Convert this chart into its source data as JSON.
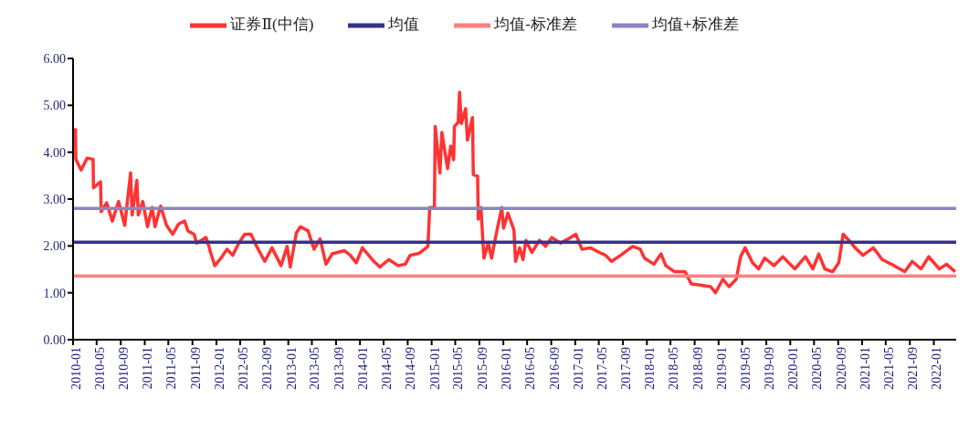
{
  "chart_data": {
    "type": "line",
    "legend": "top",
    "marker": "none",
    "line_style": "solid",
    "xlim": [
      "2010-01-01",
      "2022-04-25"
    ],
    "xticks": [
      "2010-01",
      "2010-05",
      "2010-09",
      "2011-01",
      "2011-05",
      "2011-09",
      "2012-01",
      "2012-05",
      "2012-09",
      "2013-01",
      "2013-05",
      "2013-09",
      "2014-01",
      "2014-05",
      "2014-09",
      "2015-01",
      "2015-05",
      "2015-09",
      "2016-01",
      "2016-05",
      "2016-09",
      "2017-01",
      "2017-05",
      "2017-09",
      "2018-01",
      "2018-05",
      "2018-09",
      "2019-01",
      "2019-05",
      "2019-09",
      "2020-01",
      "2020-05",
      "2020-09",
      "2021-01",
      "2021-05",
      "2021-09",
      "2022-01"
    ],
    "ylim": [
      0,
      6
    ],
    "yticks": [
      {
        "value": 0,
        "label": "0.00"
      },
      {
        "value": 1,
        "label": "1.00"
      },
      {
        "value": 2,
        "label": "2.00"
      },
      {
        "value": 3,
        "label": "3.00"
      },
      {
        "value": 4,
        "label": "4.00"
      },
      {
        "value": 5,
        "label": "5.00"
      },
      {
        "value": 6,
        "label": "6.00"
      }
    ],
    "series": [
      {
        "name": "证券Ⅱ(中信)",
        "color": "#ff3333",
        "x": [
          "2010-01-13",
          "2010-01-15",
          "2010-02-11",
          "2010-03-13",
          "2010-04-13",
          "2010-04-15",
          "2010-05-21",
          "2010-05-24",
          "2010-06-21",
          "2010-07-20",
          "2010-08-21",
          "2010-09-21",
          "2010-10-21",
          "2010-10-29",
          "2010-11-22",
          "2010-11-29",
          "2010-12-22",
          "2011-01-15",
          "2011-02-08",
          "2011-02-22",
          "2011-03-23",
          "2011-04-22",
          "2011-05-23",
          "2011-06-23",
          "2011-07-23",
          "2011-08-09",
          "2011-09-09",
          "2011-09-23",
          "2011-11-09",
          "2011-11-24",
          "2011-12-02",
          "2011-12-24",
          "2012-01-24",
          "2012-02-24",
          "2012-03-24",
          "2012-04-24",
          "2012-05-24",
          "2012-06-25",
          "2012-07-24",
          "2012-09-03",
          "2012-10-10",
          "2012-11-25",
          "2012-12-26",
          "2013-01-11",
          "2013-02-11",
          "2013-03-04",
          "2013-04-12",
          "2013-05-12",
          "2013-06-12",
          "2013-07-12",
          "2013-08-12",
          "2013-10-13",
          "2013-11-13",
          "2013-12-13",
          "2014-01-13",
          "2014-03-13",
          "2014-04-13",
          "2014-05-28",
          "2014-07-14",
          "2014-08-20",
          "2014-09-13",
          "2014-10-28",
          "2014-12-13",
          "2014-12-22",
          "2015-01-15",
          "2015-01-19",
          "2015-02-12",
          "2015-02-22",
          "2015-03-23",
          "2015-04-08",
          "2015-04-23",
          "2015-04-27",
          "2015-05-16",
          "2015-05-23",
          "2015-06-01",
          "2015-06-23",
          "2015-07-02",
          "2015-07-28",
          "2015-08-01",
          "2015-08-23",
          "2015-08-26",
          "2015-09-09",
          "2015-09-24",
          "2015-10-16",
          "2015-11-02",
          "2015-11-24",
          "2015-12-24",
          "2016-01-02",
          "2016-01-24",
          "2016-02-24",
          "2016-03-03",
          "2016-03-24",
          "2016-04-10",
          "2016-04-25",
          "2016-05-25",
          "2016-07-03",
          "2016-08-03",
          "2016-09-04",
          "2016-10-18",
          "2016-11-26",
          "2017-01-04",
          "2017-02-04",
          "2017-03-19",
          "2017-05-05",
          "2017-06-05",
          "2017-07-05",
          "2017-08-20",
          "2017-10-20",
          "2017-11-28",
          "2017-12-20",
          "2018-02-06",
          "2018-03-14",
          "2018-04-07",
          "2018-05-22",
          "2018-07-14",
          "2018-08-15",
          "2018-10-08",
          "2018-11-22",
          "2018-12-16",
          "2019-01-23",
          "2019-02-23",
          "2019-04-01",
          "2019-04-23",
          "2019-05-16",
          "2019-06-23",
          "2019-07-24",
          "2019-08-24",
          "2019-10-10",
          "2019-11-24",
          "2020-01-24",
          "2020-03-18",
          "2020-04-25",
          "2020-05-25",
          "2020-06-25",
          "2020-08-04",
          "2020-09-04",
          "2020-09-26",
          "2020-10-26",
          "2020-11-26",
          "2021-01-05",
          "2021-02-27",
          "2021-04-13",
          "2021-06-13",
          "2021-08-06",
          "2021-09-13",
          "2021-10-28",
          "2021-12-06",
          "2022-01-29",
          "2022-03-07",
          "2022-04-20"
        ],
        "values": [
          4.51,
          3.85,
          3.62,
          3.87,
          3.85,
          3.24,
          3.37,
          2.73,
          2.92,
          2.53,
          2.95,
          2.44,
          3.56,
          2.66,
          3.4,
          2.66,
          2.95,
          2.41,
          2.82,
          2.41,
          2.85,
          2.44,
          2.25,
          2.47,
          2.53,
          2.32,
          2.25,
          2.06,
          2.18,
          1.99,
          1.86,
          1.58,
          1.74,
          1.93,
          1.8,
          2.06,
          2.25,
          2.25,
          1.99,
          1.67,
          1.96,
          1.58,
          1.99,
          1.55,
          2.28,
          2.41,
          2.32,
          1.93,
          2.15,
          1.61,
          1.83,
          1.9,
          1.8,
          1.64,
          1.96,
          1.67,
          1.55,
          1.71,
          1.58,
          1.61,
          1.8,
          1.84,
          1.99,
          2.82,
          2.82,
          4.55,
          3.56,
          4.42,
          3.65,
          4.13,
          3.84,
          4.55,
          4.64,
          5.28,
          4.61,
          4.93,
          4.26,
          4.74,
          3.52,
          3.49,
          2.57,
          2.82,
          1.74,
          2.06,
          1.74,
          2.22,
          2.82,
          2.38,
          2.7,
          2.34,
          1.67,
          1.96,
          1.71,
          2.12,
          1.86,
          2.12,
          1.99,
          2.18,
          2.06,
          2.15,
          2.25,
          1.93,
          1.96,
          1.86,
          1.8,
          1.67,
          1.8,
          1.99,
          1.93,
          1.74,
          1.61,
          1.83,
          1.58,
          1.45,
          1.45,
          1.19,
          1.16,
          1.13,
          1.0,
          1.29,
          1.13,
          1.29,
          1.77,
          1.96,
          1.64,
          1.51,
          1.74,
          1.58,
          1.77,
          1.51,
          1.77,
          1.51,
          1.83,
          1.51,
          1.45,
          1.64,
          2.25,
          2.12,
          1.96,
          1.8,
          1.96,
          1.71,
          1.58,
          1.45,
          1.67,
          1.51,
          1.77,
          1.51,
          1.61,
          1.45
        ]
      },
      {
        "name": "均值",
        "color": "#35318c",
        "x": [
          "2010-01-01",
          "2022-04-25"
        ],
        "values": [
          2.08,
          2.08
        ]
      },
      {
        "name": "均值-标准差",
        "color": "#ff8080",
        "x": [
          "2010-01-01",
          "2022-04-25"
        ],
        "values": [
          1.36,
          1.36
        ]
      },
      {
        "name": "均值+标准差",
        "color": "#8c84c4",
        "x": [
          "2010-01-01",
          "2022-04-25"
        ],
        "values": [
          2.8,
          2.8
        ]
      }
    ]
  }
}
